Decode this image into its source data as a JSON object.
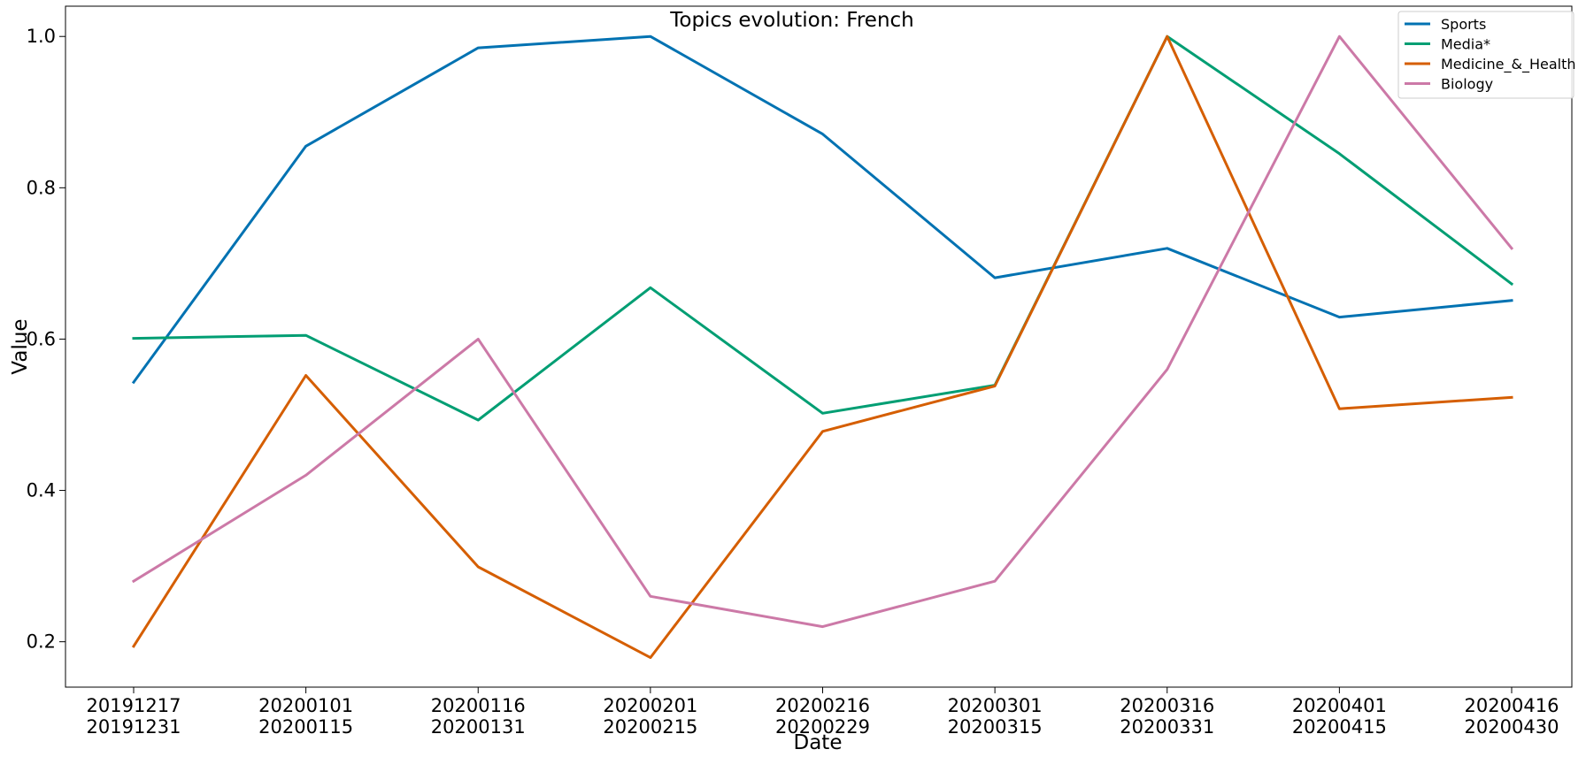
{
  "chart_data": {
    "type": "line",
    "title": "Topics evolution: French",
    "xlabel": "Date",
    "ylabel": "Value",
    "categories": [
      [
        "20191217",
        "20191231"
      ],
      [
        "20200101",
        "20200115"
      ],
      [
        "20200116",
        "20200131"
      ],
      [
        "20200201",
        "20200215"
      ],
      [
        "20200216",
        "20200229"
      ],
      [
        "20200301",
        "20200315"
      ],
      [
        "20200316",
        "20200331"
      ],
      [
        "20200401",
        "20200415"
      ],
      [
        "20200416",
        "20200430"
      ]
    ],
    "ylim": [
      0.14,
      1.04
    ],
    "yticks": [
      "0.2",
      "0.4",
      "0.6",
      "0.8",
      "1.0"
    ],
    "grid": false,
    "legend_position": "top-right",
    "series": [
      {
        "name": "Sports",
        "color": "#0072b2",
        "values": [
          0.543,
          0.855,
          0.985,
          1.0,
          0.871,
          0.681,
          0.72,
          0.629,
          0.651
        ]
      },
      {
        "name": "Media*",
        "color": "#009e73",
        "values": [
          0.601,
          0.605,
          0.493,
          0.668,
          0.502,
          0.539,
          1.0,
          0.845,
          0.673
        ]
      },
      {
        "name": "Medicine_&_Health",
        "color": "#d55e00",
        "values": [
          0.194,
          0.552,
          0.299,
          0.179,
          0.478,
          0.538,
          1.0,
          0.508,
          0.523
        ]
      },
      {
        "name": "Biology",
        "color": "#cc79a7",
        "values": [
          0.28,
          0.42,
          0.6,
          0.26,
          0.22,
          0.28,
          0.56,
          1.0,
          0.72
        ]
      }
    ]
  }
}
